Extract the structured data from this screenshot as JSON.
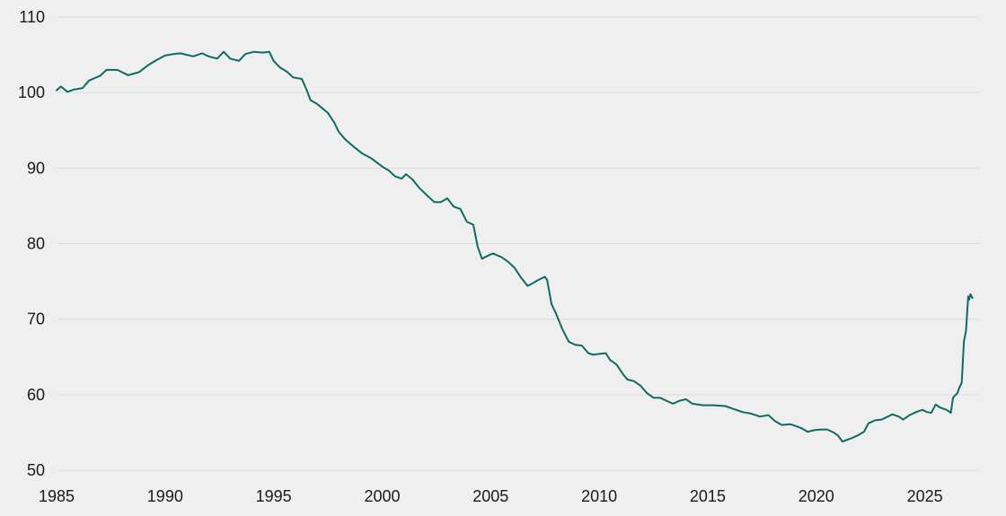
{
  "chart_data": {
    "type": "line",
    "title": "",
    "xlabel": "",
    "ylabel": "",
    "xlim": [
      1985,
      2027.5
    ],
    "ylim": [
      50,
      110
    ],
    "x_ticks": [
      1985,
      1990,
      1995,
      2000,
      2005,
      2010,
      2015,
      2020,
      2025
    ],
    "x_tick_labels": [
      "1985",
      "1990",
      "1995",
      "2000",
      "2005",
      "2010",
      "2015",
      "2020",
      "2025"
    ],
    "y_ticks": [
      50,
      60,
      70,
      80,
      90,
      100,
      110
    ],
    "y_tick_labels": [
      "50",
      "60",
      "70",
      "80",
      "90",
      "100",
      "110"
    ],
    "grid": "horizontal",
    "legend": "none",
    "colors": {
      "line": "#0d6b62",
      "background": "#efefef",
      "grid": "#dcdcdc"
    },
    "series": [
      {
        "values": [
          [
            1985.0,
            100.3
          ],
          [
            1985.2,
            100.8
          ],
          [
            1985.5,
            100.1
          ],
          [
            1985.8,
            100.4
          ],
          [
            1986.2,
            100.6
          ],
          [
            1986.5,
            101.6
          ],
          [
            1987.0,
            102.2
          ],
          [
            1987.3,
            103.0
          ],
          [
            1987.8,
            103.0
          ],
          [
            1988.3,
            102.3
          ],
          [
            1988.8,
            102.7
          ],
          [
            1989.2,
            103.6
          ],
          [
            1989.6,
            104.3
          ],
          [
            1990.0,
            104.9
          ],
          [
            1990.4,
            105.1
          ],
          [
            1990.7,
            105.2
          ],
          [
            1991.0,
            105.0
          ],
          [
            1991.3,
            104.8
          ],
          [
            1991.7,
            105.2
          ],
          [
            1992.0,
            104.8
          ],
          [
            1992.4,
            104.5
          ],
          [
            1992.7,
            105.4
          ],
          [
            1993.0,
            104.5
          ],
          [
            1993.4,
            104.2
          ],
          [
            1993.7,
            105.1
          ],
          [
            1994.1,
            105.4
          ],
          [
            1994.5,
            105.3
          ],
          [
            1994.8,
            105.4
          ],
          [
            1995.0,
            104.2
          ],
          [
            1995.3,
            103.3
          ],
          [
            1995.6,
            102.8
          ],
          [
            1995.9,
            102.0
          ],
          [
            1996.3,
            101.8
          ],
          [
            1996.5,
            100.5
          ],
          [
            1996.7,
            99.0
          ],
          [
            1997.0,
            98.5
          ],
          [
            1997.5,
            97.3
          ],
          [
            1997.8,
            96.0
          ],
          [
            1998.0,
            94.8
          ],
          [
            1998.3,
            93.8
          ],
          [
            1998.7,
            92.8
          ],
          [
            1999.1,
            91.9
          ],
          [
            1999.5,
            91.3
          ],
          [
            2000.0,
            90.2
          ],
          [
            2000.3,
            89.7
          ],
          [
            2000.6,
            88.9
          ],
          [
            2000.9,
            88.6
          ],
          [
            2001.1,
            89.2
          ],
          [
            2001.4,
            88.5
          ],
          [
            2001.7,
            87.4
          ],
          [
            2002.1,
            86.3
          ],
          [
            2002.4,
            85.5
          ],
          [
            2002.7,
            85.5
          ],
          [
            2003.0,
            86.0
          ],
          [
            2003.3,
            84.9
          ],
          [
            2003.6,
            84.6
          ],
          [
            2003.9,
            82.9
          ],
          [
            2004.2,
            82.5
          ],
          [
            2004.4,
            79.6
          ],
          [
            2004.6,
            78.0
          ],
          [
            2004.8,
            78.3
          ],
          [
            2005.1,
            78.7
          ],
          [
            2005.5,
            78.2
          ],
          [
            2005.8,
            77.6
          ],
          [
            2006.1,
            76.8
          ],
          [
            2006.4,
            75.5
          ],
          [
            2006.7,
            74.4
          ],
          [
            2006.9,
            74.7
          ],
          [
            2007.2,
            75.2
          ],
          [
            2007.5,
            75.6
          ],
          [
            2007.6,
            75.2
          ],
          [
            2007.8,
            72.0
          ],
          [
            2008.0,
            70.8
          ],
          [
            2008.3,
            68.7
          ],
          [
            2008.6,
            67.0
          ],
          [
            2008.9,
            66.6
          ],
          [
            2009.2,
            66.5
          ],
          [
            2009.5,
            65.5
          ],
          [
            2009.7,
            65.3
          ],
          [
            2010.0,
            65.4
          ],
          [
            2010.3,
            65.5
          ],
          [
            2010.5,
            64.6
          ],
          [
            2010.8,
            64.0
          ],
          [
            2011.1,
            62.7
          ],
          [
            2011.3,
            62.0
          ],
          [
            2011.6,
            61.8
          ],
          [
            2011.9,
            61.2
          ],
          [
            2012.2,
            60.2
          ],
          [
            2012.5,
            59.6
          ],
          [
            2012.8,
            59.6
          ],
          [
            2013.1,
            59.2
          ],
          [
            2013.4,
            58.8
          ],
          [
            2013.7,
            59.2
          ],
          [
            2014.0,
            59.4
          ],
          [
            2014.3,
            58.8
          ],
          [
            2014.8,
            58.6
          ],
          [
            2015.3,
            58.6
          ],
          [
            2015.8,
            58.5
          ],
          [
            2016.2,
            58.1
          ],
          [
            2016.6,
            57.7
          ],
          [
            2017.0,
            57.5
          ],
          [
            2017.4,
            57.1
          ],
          [
            2017.8,
            57.3
          ],
          [
            2018.1,
            56.5
          ],
          [
            2018.4,
            56.0
          ],
          [
            2018.8,
            56.1
          ],
          [
            2019.0,
            55.9
          ],
          [
            2019.3,
            55.6
          ],
          [
            2019.6,
            55.1
          ],
          [
            2019.9,
            55.3
          ],
          [
            2020.2,
            55.4
          ],
          [
            2020.5,
            55.4
          ],
          [
            2020.8,
            55.0
          ],
          [
            2021.0,
            54.6
          ],
          [
            2021.2,
            53.8
          ],
          [
            2021.6,
            54.2
          ],
          [
            2021.9,
            54.6
          ],
          [
            2022.2,
            55.1
          ],
          [
            2022.4,
            56.2
          ],
          [
            2022.7,
            56.6
          ],
          [
            2023.0,
            56.7
          ],
          [
            2023.3,
            57.1
          ],
          [
            2023.5,
            57.4
          ],
          [
            2023.8,
            57.1
          ],
          [
            2024.0,
            56.7
          ],
          [
            2024.3,
            57.3
          ],
          [
            2024.6,
            57.7
          ],
          [
            2024.9,
            58.0
          ],
          [
            2025.1,
            57.7
          ],
          [
            2025.3,
            57.6
          ],
          [
            2025.5,
            58.7
          ],
          [
            2025.7,
            58.3
          ],
          [
            2026.0,
            58.0
          ],
          [
            2026.2,
            57.6
          ],
          [
            2026.3,
            59.6
          ],
          [
            2026.5,
            60.2
          ],
          [
            2026.6,
            61.0
          ],
          [
            2026.7,
            61.6
          ],
          [
            2026.8,
            67.0
          ],
          [
            2026.9,
            68.5
          ],
          [
            2027.0,
            73.0
          ],
          [
            2027.05,
            72.6
          ],
          [
            2027.1,
            73.3
          ],
          [
            2027.2,
            72.8
          ]
        ]
      }
    ]
  }
}
